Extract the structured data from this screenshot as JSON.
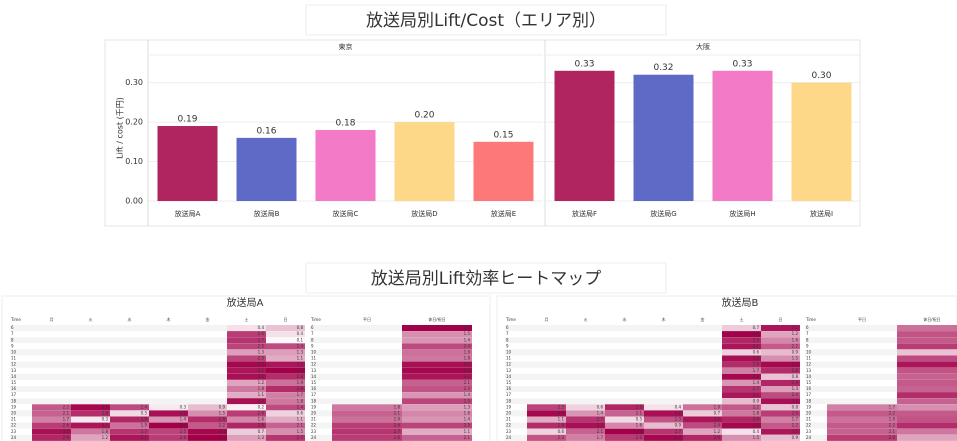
{
  "chart_data": {
    "type": "bar",
    "title": "放送局別Lift/Cost（エリア別）",
    "y_label": "Lift / cost (千円)",
    "ylim": [
      0,
      0.37
    ],
    "yticks": [
      {
        "value": 0,
        "label": "0.00"
      },
      {
        "value": 0.1,
        "label": "0.10"
      },
      {
        "value": 0.2,
        "label": "0.20"
      },
      {
        "value": 0.3,
        "label": "0.30"
      }
    ],
    "grid": true,
    "facets": [
      {
        "name": "東京",
        "categories": [
          "放送局A",
          "放送局B",
          "放送局C",
          "放送局D",
          "放送局E"
        ],
        "values": [
          0.19,
          0.16,
          0.18,
          0.2,
          0.15
        ],
        "value_labels": [
          "0.19",
          "0.16",
          "0.18",
          "0.20",
          "0.15"
        ],
        "colors": [
          "#b0245f",
          "#5f6ac6",
          "#f27ac7",
          "#fdd888",
          "#fd7878"
        ]
      },
      {
        "name": "大阪",
        "categories": [
          "放送局F",
          "放送局G",
          "放送局H",
          "放送局I"
        ],
        "values": [
          0.33,
          0.32,
          0.33,
          0.3
        ],
        "value_labels": [
          "0.33",
          "0.32",
          "0.33",
          "0.30"
        ],
        "colors": [
          "#b0245f",
          "#5f6ac6",
          "#f27ac7",
          "#fdd888"
        ]
      }
    ]
  },
  "heatmaps": {
    "title": "放送局別Lift効率ヒートマップ",
    "colors": [
      "#ffffff",
      "#a3004a"
    ],
    "panels": [
      {
        "title": "放送局A",
        "week": {
          "columns": [
            "Time",
            "月",
            "火",
            "水",
            "木",
            "金",
            "土",
            "日"
          ],
          "rows": [
            [
              6,
              null,
              null,
              null,
              null,
              null,
              0.4,
              0.8
            ],
            [
              7,
              null,
              null,
              null,
              null,
              null,
              2.6,
              0.4
            ],
            [
              8,
              null,
              null,
              null,
              null,
              null,
              2.7,
              0.1
            ],
            [
              9,
              null,
              null,
              null,
              null,
              null,
              2.5,
              2.4
            ],
            [
              10,
              null,
              null,
              null,
              null,
              null,
              1.3,
              1.3
            ],
            [
              11,
              null,
              null,
              null,
              null,
              null,
              2.5,
              1.1
            ],
            [
              12,
              null,
              null,
              null,
              null,
              null,
              3.3,
              3.1
            ],
            [
              13,
              null,
              null,
              null,
              null,
              null,
              3.1,
              3.4
            ],
            [
              14,
              null,
              null,
              null,
              null,
              null,
              3.2,
              2.8
            ],
            [
              15,
              null,
              null,
              null,
              null,
              null,
              1.2,
              1.9
            ],
            [
              16,
              null,
              null,
              null,
              null,
              null,
              1.8,
              2.8
            ],
            [
              17,
              null,
              null,
              null,
              null,
              null,
              1.1,
              1.7
            ],
            [
              18,
              null,
              null,
              null,
              null,
              null,
              3.2,
              1.8
            ],
            [
              19,
              2.2,
              3.3,
              2.4,
              0.3,
              0.9,
              0.2,
              2.4
            ],
            [
              20,
              2.1,
              2.8,
              0.5,
              3.2,
              1.5,
              2.6,
              0.6
            ],
            [
              21,
              1.7,
              0.3,
              2.9,
              1.4,
              2.8,
              1.6,
              1.1
            ],
            [
              22,
              2.6,
              3.1,
              1.9,
              3.4,
              2.2,
              2.9,
              2.1
            ],
            [
              23,
              3.2,
              1.8,
              2.7,
              2.5,
              3.3,
              0.7,
              1.5
            ],
            [
              24,
              2.9,
              1.2,
              3.1,
              2.6,
              3.4,
              1.3,
              2.7
            ]
          ]
        },
        "daytype": {
          "columns": [
            "Time",
            "平日",
            "休日/祝日"
          ],
          "rows": [
            [
              6,
              null,
              3.4
            ],
            [
              7,
              null,
              1.5
            ],
            [
              8,
              null,
              1.4
            ],
            [
              9,
              null,
              2.4
            ],
            [
              10,
              null,
              1.9
            ],
            [
              11,
              null,
              1.8
            ],
            [
              12,
              null,
              3.2
            ],
            [
              13,
              null,
              3.3
            ],
            [
              14,
              null,
              3.1
            ],
            [
              15,
              null,
              2.1
            ],
            [
              16,
              null,
              2.3
            ],
            [
              17,
              null,
              1.4
            ],
            [
              18,
              null,
              2.5
            ],
            [
              19,
              1.8,
              1.3
            ],
            [
              20,
              2.1,
              1.6
            ],
            [
              21,
              1.9,
              1.4
            ],
            [
              22,
              2.6,
              2.5
            ],
            [
              23,
              2.7,
              1.1
            ],
            [
              24,
              2.6,
              2.1
            ]
          ]
        }
      },
      {
        "title": "放送局B",
        "week": {
          "columns": [
            "Time",
            "月",
            "火",
            "水",
            "木",
            "金",
            "土",
            "日"
          ],
          "rows": [
            [
              6,
              null,
              null,
              null,
              null,
              null,
              0.7,
              3.1
            ],
            [
              7,
              null,
              null,
              null,
              null,
              null,
              3.4,
              1.2
            ],
            [
              8,
              null,
              null,
              null,
              null,
              null,
              2.9,
              1.6
            ],
            [
              9,
              null,
              null,
              null,
              null,
              null,
              3.1,
              2.2
            ],
            [
              10,
              null,
              null,
              null,
              null,
              null,
              0.6,
              0.9
            ],
            [
              11,
              null,
              null,
              null,
              null,
              null,
              3.2,
              1.5
            ],
            [
              12,
              null,
              null,
              null,
              null,
              null,
              2.8,
              3.3
            ],
            [
              13,
              null,
              null,
              null,
              null,
              null,
              1.7,
              2.8
            ],
            [
              14,
              null,
              null,
              null,
              null,
              null,
              3.3,
              0.8
            ],
            [
              15,
              null,
              null,
              null,
              null,
              null,
              1.4,
              2.9
            ],
            [
              16,
              null,
              null,
              null,
              null,
              null,
              2.7,
              1.3
            ],
            [
              17,
              null,
              null,
              null,
              null,
              null,
              3.1,
              2.4
            ],
            [
              18,
              null,
              null,
              null,
              null,
              null,
              0.9,
              3.2
            ],
            [
              19,
              2.5,
              0.6,
              2.9,
              0.4,
              1.9,
              2.2,
              0.8
            ],
            [
              20,
              3.3,
              1.4,
              2.1,
              3.2,
              0.7,
              1.8,
              2.6
            ],
            [
              21,
              1.1,
              2.7,
              0.5,
              2.3,
              3.1,
              2.9,
              1.7
            ],
            [
              22,
              2.8,
              3.2,
              1.6,
              0.9,
              2.4,
              3.3,
              2.2
            ],
            [
              23,
              0.6,
              2.1,
              3.4,
              2.7,
              1.2,
              0.4,
              3.1
            ],
            [
              24,
              2.3,
              1.7,
              2.6,
              3.3,
              2.9,
              1.5,
              0.9
            ]
          ]
        },
        "daytype": {
          "columns": [
            "Time",
            "平日",
            "休日/祝日"
          ],
          "rows": [
            [
              6,
              null,
              1.9
            ],
            [
              7,
              null,
              2.3
            ],
            [
              8,
              null,
              2.2
            ],
            [
              9,
              null,
              2.6
            ],
            [
              10,
              null,
              0.8
            ],
            [
              11,
              null,
              2.4
            ],
            [
              12,
              null,
              3.1
            ],
            [
              13,
              null,
              2.3
            ],
            [
              14,
              null,
              2.1
            ],
            [
              15,
              null,
              2.2
            ],
            [
              16,
              null,
              2.1
            ],
            [
              17,
              null,
              2.8
            ],
            [
              18,
              null,
              2.1
            ],
            [
              19,
              1.7,
              1.5
            ],
            [
              20,
              2.2,
              2.2
            ],
            [
              21,
              1.9,
              2.3
            ],
            [
              22,
              2.2,
              2.8
            ],
            [
              23,
              2.1,
              1.8
            ],
            [
              24,
              2.6,
              1.2
            ]
          ]
        }
      }
    ]
  }
}
